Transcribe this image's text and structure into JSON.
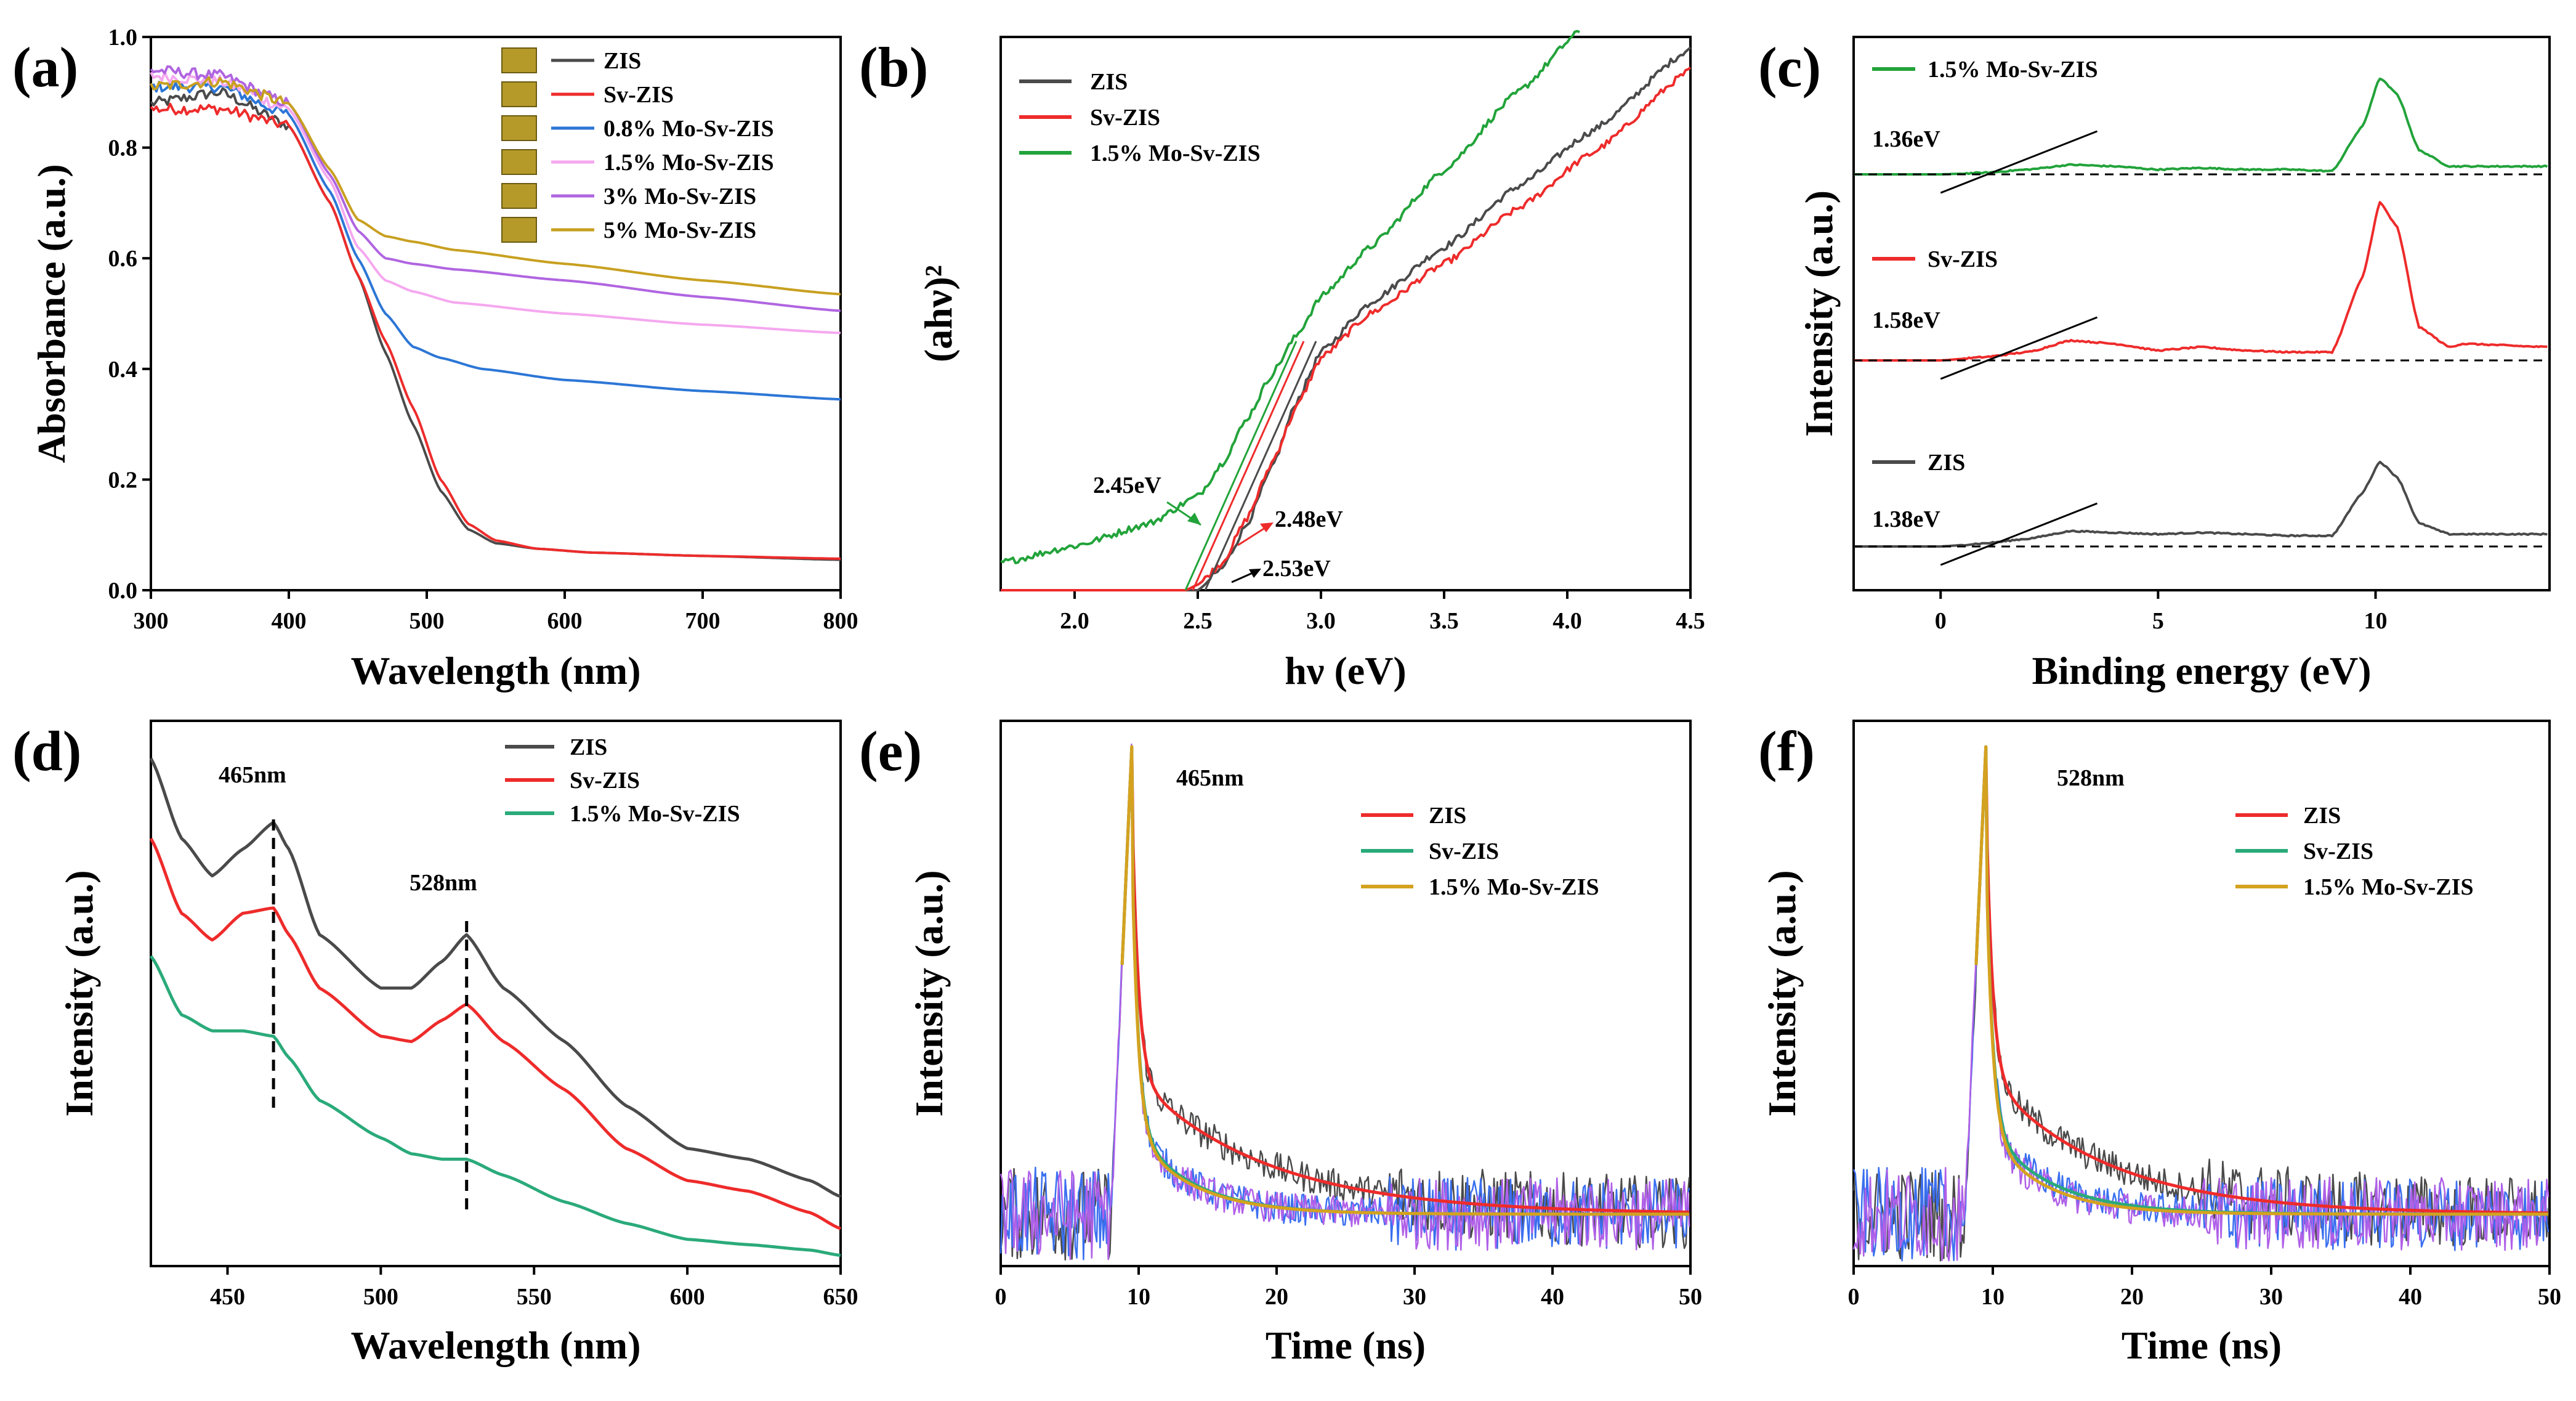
{
  "colors": {
    "zis": "#4a4a4a",
    "sv": "#ee2b2b",
    "mo08": "#2c76d6",
    "mo15": "#f5a8ef",
    "mo3": "#b065e0",
    "mo5": "#c8a020",
    "green": "#22a33a",
    "teal": "#2aaa7a",
    "gold": "#d4a21f",
    "blueNoise": "#3a6ff0",
    "purpleNoise": "#b060e8"
  },
  "chart_data": [
    {
      "id": "a",
      "panel_label": "(a)",
      "type": "line",
      "xlabel": "Wavelength (nm)",
      "ylabel": "Absorbance (a.u.)",
      "xlim": [
        300,
        800
      ],
      "ylim": [
        0.0,
        1.0
      ],
      "xticks": [
        "300",
        "400",
        "500",
        "600",
        "700",
        "800"
      ],
      "yticks": [
        "0.0",
        "0.2",
        "0.4",
        "0.6",
        "0.8",
        "1.0"
      ],
      "series": [
        {
          "name": "ZIS",
          "color": "zis",
          "x": [
            300,
            350,
            400,
            430,
            450,
            470,
            490,
            510,
            530,
            550,
            580,
            620,
            700,
            800
          ],
          "y": [
            0.88,
            0.9,
            0.84,
            0.7,
            0.57,
            0.43,
            0.3,
            0.18,
            0.11,
            0.085,
            0.075,
            0.068,
            0.062,
            0.055
          ]
        },
        {
          "name": "Sv-ZIS",
          "color": "sv",
          "x": [
            300,
            350,
            400,
            430,
            450,
            470,
            490,
            510,
            530,
            550,
            580,
            620,
            700,
            800
          ],
          "y": [
            0.87,
            0.87,
            0.84,
            0.7,
            0.57,
            0.45,
            0.33,
            0.2,
            0.12,
            0.09,
            0.075,
            0.068,
            0.062,
            0.057
          ]
        },
        {
          "name": "0.8% Mo-Sv-ZIS",
          "color": "mo08",
          "x": [
            300,
            350,
            400,
            430,
            450,
            470,
            490,
            510,
            540,
            600,
            700,
            800
          ],
          "y": [
            0.91,
            0.91,
            0.86,
            0.72,
            0.6,
            0.5,
            0.44,
            0.42,
            0.4,
            0.38,
            0.36,
            0.345
          ]
        },
        {
          "name": "1.5% Mo-Sv-ZIS",
          "color": "mo15",
          "x": [
            300,
            350,
            400,
            430,
            450,
            470,
            490,
            520,
            600,
            700,
            800
          ],
          "y": [
            0.93,
            0.92,
            0.87,
            0.74,
            0.62,
            0.56,
            0.54,
            0.52,
            0.5,
            0.48,
            0.465
          ]
        },
        {
          "name": "3% Mo-Sv-ZIS",
          "color": "mo3",
          "x": [
            300,
            350,
            400,
            430,
            450,
            470,
            490,
            520,
            600,
            700,
            800
          ],
          "y": [
            0.94,
            0.93,
            0.88,
            0.75,
            0.65,
            0.6,
            0.59,
            0.58,
            0.56,
            0.53,
            0.505
          ]
        },
        {
          "name": "5% Mo-Sv-ZIS",
          "color": "mo5",
          "x": [
            300,
            350,
            400,
            430,
            450,
            470,
            490,
            520,
            600,
            700,
            800
          ],
          "y": [
            0.91,
            0.92,
            0.88,
            0.76,
            0.67,
            0.64,
            0.63,
            0.615,
            0.59,
            0.56,
            0.535
          ]
        }
      ]
    },
    {
      "id": "b",
      "panel_label": "(b)",
      "type": "line",
      "xlabel": "hν (eV)",
      "ylabel": "(ahν)²",
      "xlim": [
        1.7,
        4.5
      ],
      "ylim": [
        0,
        1
      ],
      "xticks": [
        "2.0",
        "2.5",
        "3.0",
        "3.5",
        "4.0",
        "4.5"
      ],
      "series": [
        {
          "name": "ZIS",
          "color": "zis",
          "x": [
            1.7,
            2.4,
            2.5,
            2.6,
            2.7,
            2.8,
            2.9,
            3.0,
            3.2,
            3.5,
            3.8,
            4.1,
            4.5
          ],
          "y": [
            0,
            0,
            0,
            0.04,
            0.12,
            0.22,
            0.34,
            0.43,
            0.52,
            0.62,
            0.73,
            0.83,
            0.98
          ]
        },
        {
          "name": "Sv-ZIS",
          "color": "sv",
          "x": [
            1.7,
            2.45,
            2.5,
            2.6,
            2.7,
            2.8,
            2.9,
            3.0,
            3.2,
            3.5,
            3.8,
            4.1,
            4.5
          ],
          "y": [
            0,
            0,
            0.01,
            0.05,
            0.13,
            0.23,
            0.33,
            0.42,
            0.5,
            0.59,
            0.69,
            0.79,
            0.94
          ]
        },
        {
          "name": "1.5% Mo-Sv-ZIS",
          "color": "green",
          "x": [
            1.7,
            2.0,
            2.3,
            2.5,
            2.6,
            2.7,
            2.8,
            2.9,
            3.0,
            3.2,
            3.5,
            3.8,
            4.05
          ],
          "y": [
            0.05,
            0.08,
            0.12,
            0.17,
            0.23,
            0.31,
            0.39,
            0.46,
            0.53,
            0.62,
            0.76,
            0.9,
            1.01
          ]
        }
      ],
      "annotations": [
        "2.45eV",
        "2.48eV",
        "2.53eV"
      ]
    },
    {
      "id": "c",
      "panel_label": "(c)",
      "type": "line",
      "xlabel": "Binding energy (eV)",
      "ylabel": "Intensity (a.u.)",
      "xlim": [
        -2,
        14
      ],
      "xticks": [
        "0",
        "5",
        "10"
      ],
      "series": [
        {
          "name": "1.5% Mo-Sv-ZIS",
          "color": "green",
          "x": [
            -2,
            0,
            1,
            2,
            3,
            4,
            5,
            6,
            7,
            8,
            9,
            9.7,
            10.1,
            10.5,
            11,
            11.7,
            12,
            14
          ],
          "y": [
            0,
            0,
            0.01,
            0.03,
            0.06,
            0.05,
            0.03,
            0.04,
            0.03,
            0.03,
            0.02,
            0.3,
            0.6,
            0.5,
            0.15,
            0.05,
            0.05,
            0.05
          ],
          "offset": 2
        },
        {
          "name": "Sv-ZIS",
          "color": "sv",
          "x": [
            -2,
            0,
            1,
            2,
            3,
            4,
            5,
            6,
            7,
            8,
            9,
            9.7,
            10.1,
            10.5,
            11,
            11.7,
            12,
            14
          ],
          "y": [
            0,
            0,
            0.02,
            0.05,
            0.12,
            0.1,
            0.06,
            0.08,
            0.06,
            0.05,
            0.05,
            0.5,
            0.95,
            0.8,
            0.2,
            0.08,
            0.1,
            0.08
          ],
          "offset": 1
        },
        {
          "name": "ZIS",
          "color": "zis",
          "x": [
            -2,
            0,
            1,
            2,
            3,
            4,
            5,
            6,
            7,
            8,
            9,
            9.7,
            10.1,
            10.5,
            11,
            11.7,
            12,
            14
          ],
          "y": [
            0,
            0,
            0.02,
            0.05,
            0.1,
            0.09,
            0.08,
            0.09,
            0.08,
            0.07,
            0.07,
            0.35,
            0.55,
            0.45,
            0.15,
            0.08,
            0.08,
            0.08
          ],
          "offset": 0
        }
      ],
      "annotations": [
        "1.36eV",
        "1.58eV",
        "1.38eV"
      ]
    },
    {
      "id": "d",
      "panel_label": "(d)",
      "type": "line",
      "xlabel": "Wavelength (nm)",
      "ylabel": "Intensity (a.u.)",
      "xlim": [
        425,
        650
      ],
      "xticks": [
        "450",
        "500",
        "550",
        "600",
        "650"
      ],
      "series": [
        {
          "name": "ZIS",
          "color": "zis",
          "x": [
            425,
            435,
            445,
            455,
            465,
            470,
            480,
            500,
            510,
            520,
            528,
            540,
            560,
            580,
            600,
            620,
            640,
            650
          ],
          "y": [
            0.95,
            0.8,
            0.73,
            0.78,
            0.83,
            0.78,
            0.62,
            0.52,
            0.52,
            0.57,
            0.62,
            0.52,
            0.42,
            0.3,
            0.22,
            0.2,
            0.16,
            0.13
          ]
        },
        {
          "name": "Sv-ZIS",
          "color": "sv",
          "x": [
            425,
            435,
            445,
            455,
            465,
            470,
            480,
            500,
            510,
            520,
            528,
            540,
            560,
            580,
            600,
            620,
            640,
            650
          ],
          "y": [
            0.8,
            0.66,
            0.61,
            0.66,
            0.67,
            0.62,
            0.52,
            0.43,
            0.42,
            0.46,
            0.49,
            0.42,
            0.33,
            0.22,
            0.16,
            0.14,
            0.1,
            0.07
          ]
        },
        {
          "name": "1.5% Mo-Sv-ZIS",
          "color": "teal",
          "x": [
            425,
            435,
            445,
            455,
            465,
            470,
            480,
            500,
            510,
            520,
            528,
            540,
            560,
            580,
            600,
            620,
            640,
            650
          ],
          "y": [
            0.58,
            0.47,
            0.44,
            0.44,
            0.43,
            0.39,
            0.31,
            0.24,
            0.21,
            0.2,
            0.2,
            0.17,
            0.12,
            0.08,
            0.05,
            0.04,
            0.03,
            0.02
          ]
        }
      ],
      "annotations": [
        "465nm",
        "528nm"
      ]
    },
    {
      "id": "e",
      "panel_label": "(e)",
      "type": "line",
      "xlabel": "Time (ns)",
      "ylabel": "Intensity (a.u.)",
      "xlim": [
        0,
        50
      ],
      "xticks": [
        "0",
        "10",
        "20",
        "30",
        "40",
        "50"
      ],
      "annotation": "465nm",
      "series": [
        {
          "name": "ZIS",
          "color": "sv"
        },
        {
          "name": "Sv-ZIS",
          "color": "teal"
        },
        {
          "name": "1.5% Mo-Sv-ZIS",
          "color": "gold"
        }
      ]
    },
    {
      "id": "f",
      "panel_label": "(f)",
      "type": "line",
      "xlabel": "Time (ns)",
      "ylabel": "Intensity (a.u.)",
      "xlim": [
        0,
        50
      ],
      "xticks": [
        "0",
        "10",
        "20",
        "30",
        "40",
        "50"
      ],
      "annotation": "528nm",
      "series": [
        {
          "name": "ZIS",
          "color": "sv"
        },
        {
          "name": "Sv-ZIS",
          "color": "teal"
        },
        {
          "name": "1.5% Mo-Sv-ZIS",
          "color": "gold"
        }
      ]
    }
  ]
}
